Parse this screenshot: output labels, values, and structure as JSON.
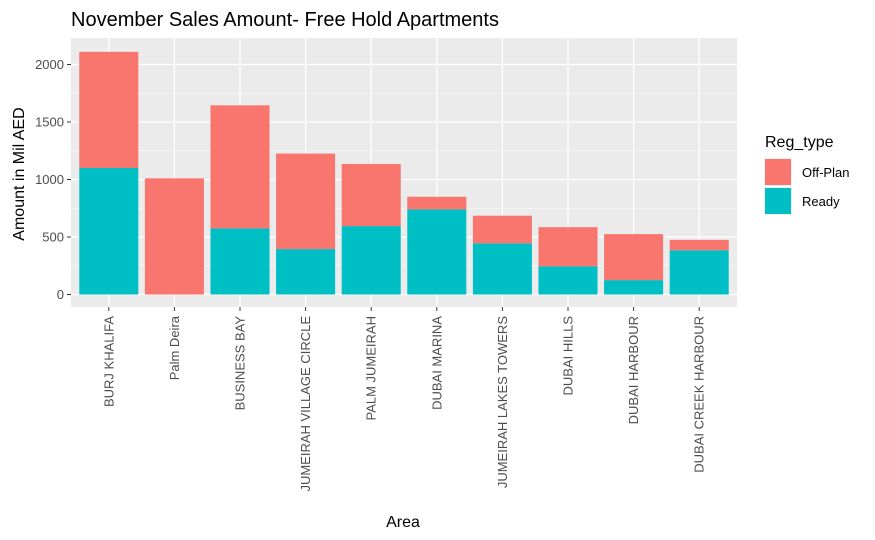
{
  "chart_data": {
    "type": "bar",
    "stacked": true,
    "title": "November Sales Amount- Free Hold Apartments",
    "xlabel": "Area",
    "ylabel": "Amount in Mil AED",
    "ylim": [
      0,
      2200
    ],
    "yticks": [
      0,
      500,
      1000,
      1500,
      2000
    ],
    "grid": true,
    "legend_position": "right",
    "legend_title": "Reg_type",
    "categories": [
      "BURJ KHALIFA",
      "Palm Deira",
      "BUSINESS BAY",
      "JUMEIRAH VILLAGE CIRCLE",
      "PALM JUMEIRAH",
      "DUBAI MARINA",
      "JUMEIRAH LAKES TOWERS",
      "DUBAI HILLS",
      "DUBAI HARBOUR",
      "DUBAI CREEK HARBOUR"
    ],
    "series": [
      {
        "name": "Off-Plan",
        "color": "#F8766D",
        "values": [
          1010,
          1010,
          1070,
          830,
          540,
          110,
          240,
          340,
          400,
          90
        ]
      },
      {
        "name": "Ready",
        "color": "#00BFC4",
        "values": [
          1100,
          0,
          575,
          395,
          595,
          740,
          445,
          245,
          125,
          385
        ]
      }
    ]
  }
}
